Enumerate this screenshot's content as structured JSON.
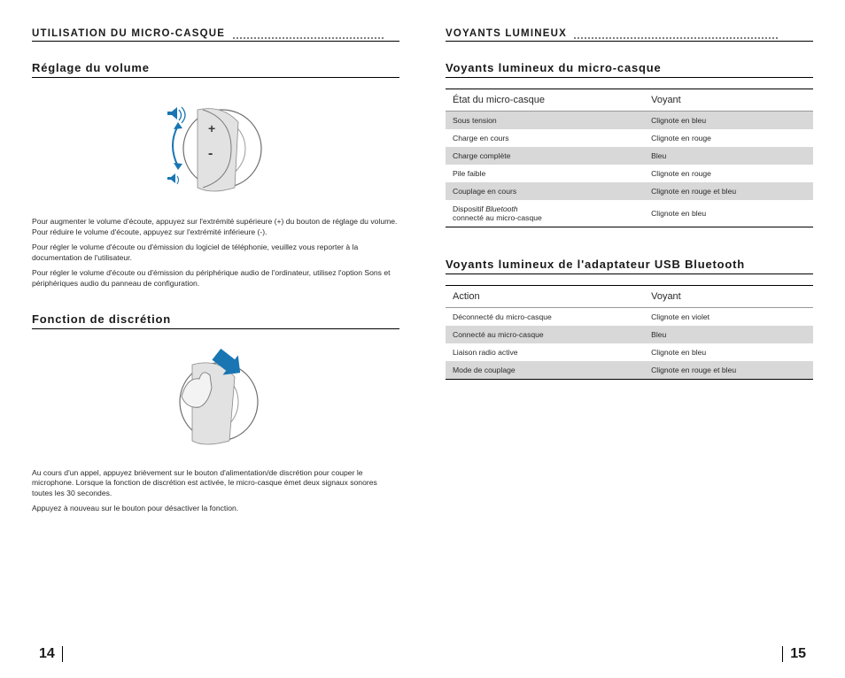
{
  "left": {
    "section_title": "UTILISATION DU MICRO-CASQUE",
    "sub1_title": "Réglage du volume",
    "sub1_para1": "Pour augmenter le volume d'écoute, appuyez sur l'extrémité supérieure (+) du bouton de réglage du volume. Pour réduire le volume d'écoute, appuyez sur l'extrémité inférieure (-).",
    "sub1_para2": "Pour régler le volume d'écoute ou d'émission du logiciel de téléphonie, veuillez vous reporter à la documentation de l'utilisateur.",
    "sub1_para3": "Pour régler le volume d'écoute ou d'émission du périphérique audio de l'ordinateur, utilisez l'option Sons et périphériques audio du panneau de configuration.",
    "sub2_title": "Fonction de discrétion",
    "sub2_para1": "Au cours d'un appel, appuyez brièvement sur le bouton d'alimentation/de discrétion pour couper le microphone. Lorsque la fonction de discrétion est activée, le micro-casque émet deux signaux sonores toutes les 30 secondes.",
    "sub2_para2": "Appuyez à nouveau sur le bouton pour désactiver la fonction.",
    "page_number": "14"
  },
  "right": {
    "section_title": "VOYANTS LUMINEUX",
    "sub1_title": "Voyants lumineux du micro-casque",
    "table1": {
      "col1": "État du micro-casque",
      "col2": "Voyant",
      "rows": [
        {
          "c1_a": "Sous tension",
          "c1_b": "",
          "c2": "Clignote en bleu"
        },
        {
          "c1_a": "Charge en cours",
          "c1_b": "",
          "c2": "Clignote en rouge"
        },
        {
          "c1_a": "Charge complète",
          "c1_b": "",
          "c2": "Bleu"
        },
        {
          "c1_a": "Pile faible",
          "c1_b": "",
          "c2": "Clignote en rouge"
        },
        {
          "c1_a": "Couplage en cours",
          "c1_b": "",
          "c2": "Clignote en rouge et bleu"
        },
        {
          "c1_a": "Dispositif ",
          "c1_i": "Bluetooth",
          "c1_b": "connecté au micro-casque",
          "c2": "Clignote en bleu"
        }
      ]
    },
    "sub2_title": "Voyants lumineux de l'adaptateur USB Bluetooth",
    "table2": {
      "col1": "Action",
      "col2": "Voyant",
      "rows": [
        {
          "c1": "Déconnecté du micro-casque",
          "c2": "Clignote en violet"
        },
        {
          "c1": "Connecté au micro-casque",
          "c2": "Bleu"
        },
        {
          "c1": "Liaison radio active",
          "c2": "Clignote en bleu"
        },
        {
          "c1": "Mode de couplage",
          "c2": "Clignote en rouge et bleu"
        }
      ]
    },
    "page_number": "15"
  },
  "colors": {
    "row_alt": "#d8d8d8",
    "text": "#1a1a1a",
    "diagram_stroke": "#6e6e6e",
    "diagram_blue": "#1976b3",
    "diagram_dark": "#3a3a3a"
  }
}
